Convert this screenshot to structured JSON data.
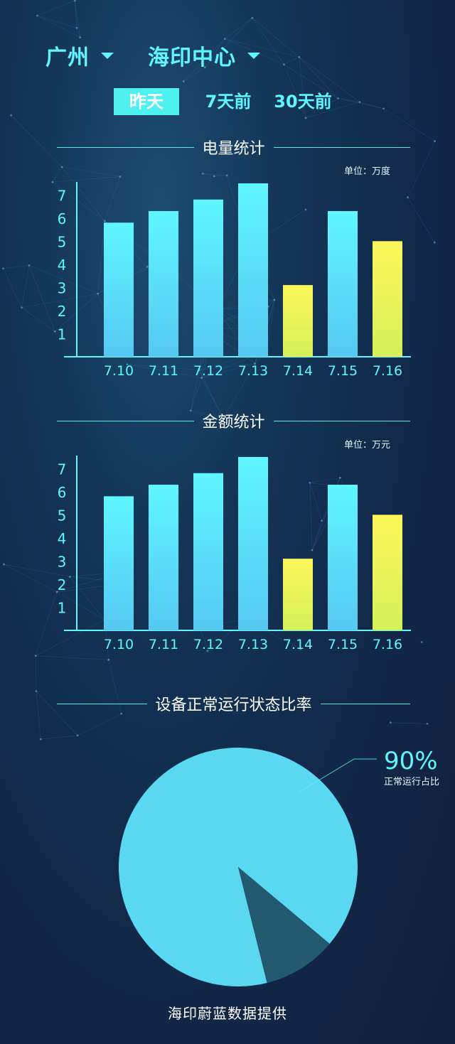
{
  "header": {
    "city": {
      "label": "广州",
      "icon": "chevron-down-icon"
    },
    "site": {
      "label": "海印中心",
      "icon": "chevron-down-icon"
    }
  },
  "tabs": [
    {
      "label": "昨天",
      "active": true
    },
    {
      "label": "7天前",
      "active": false
    },
    {
      "label": "30天前",
      "active": false
    }
  ],
  "colors": {
    "accent": "#5ff6ff",
    "bar_cyan_top": "#5ff6ff",
    "bar_cyan_bottom": "#56c8f2",
    "bar_yellow_top": "#fdf65a",
    "bar_yellow_bottom": "#d4f05a",
    "pie_main": "#5ad8f2",
    "pie_minor": "#245a70"
  },
  "chart_data": [
    {
      "type": "bar",
      "title": "电量统计",
      "unit": "单位：万度",
      "categories": [
        "7.10",
        "7.11",
        "7.12",
        "7.13",
        "7.14",
        "7.15",
        "7.16"
      ],
      "values": [
        5.8,
        6.3,
        6.8,
        7.5,
        3.1,
        6.3,
        5.0
      ],
      "highlight": [
        false,
        false,
        false,
        false,
        true,
        false,
        true
      ],
      "ylim": [
        0,
        7.5
      ],
      "yticks": [
        1,
        2,
        3,
        4,
        5,
        6,
        7
      ],
      "grid": false
    },
    {
      "type": "bar",
      "title": "金额统计",
      "unit": "单位：万元",
      "categories": [
        "7.10",
        "7.11",
        "7.12",
        "7.13",
        "7.14",
        "7.15",
        "7.16"
      ],
      "values": [
        5.8,
        6.3,
        6.8,
        7.5,
        3.1,
        6.3,
        5.0
      ],
      "highlight": [
        false,
        false,
        false,
        false,
        true,
        false,
        true
      ],
      "ylim": [
        0,
        7.5
      ],
      "yticks": [
        1,
        2,
        3,
        4,
        5,
        6,
        7
      ],
      "grid": false
    },
    {
      "type": "pie",
      "title": "设备正常运行状态比率",
      "slices": [
        {
          "value": 90,
          "label": "正常运行占比",
          "display": "90%"
        },
        {
          "value": 10
        }
      ]
    }
  ],
  "footer": "海印蔚蓝数据提供"
}
